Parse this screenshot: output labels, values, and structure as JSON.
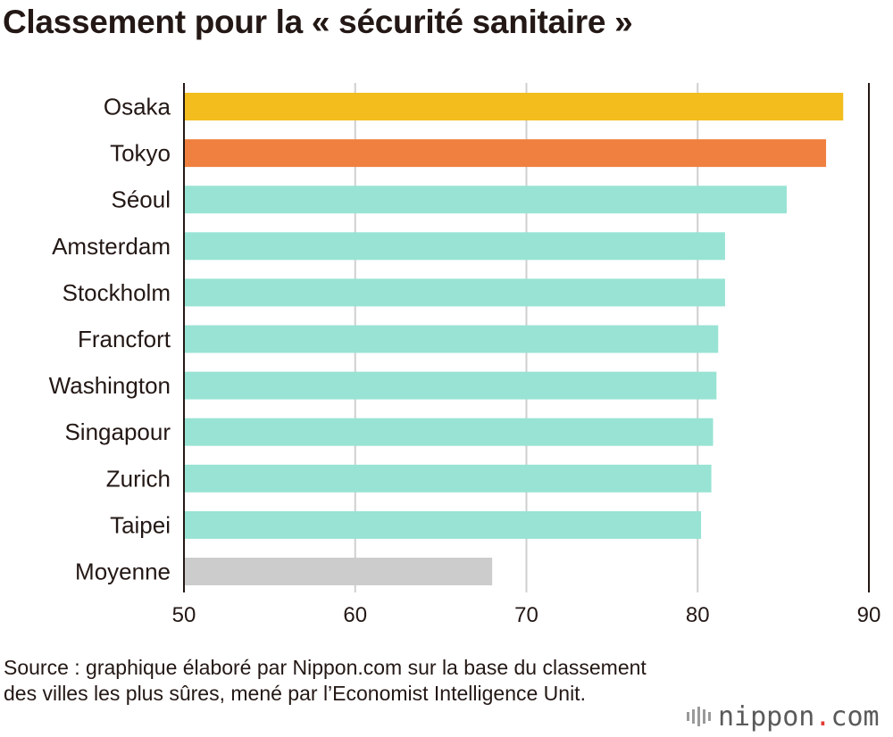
{
  "title": "Classement pour la « sécurité sanitaire »",
  "chart_data": {
    "type": "bar",
    "orientation": "horizontal",
    "title": "Classement pour la « sécurité sanitaire »",
    "categories": [
      "Osaka",
      "Tokyo",
      "Séoul",
      "Amsterdam",
      "Stockholm",
      "Francfort",
      "Washington",
      "Singapour",
      "Zurich",
      "Taipei",
      "Moyenne"
    ],
    "values": [
      88.5,
      87.5,
      85.2,
      81.6,
      81.6,
      81.2,
      81.1,
      80.9,
      80.8,
      80.2,
      68.0
    ],
    "colors": [
      "#f2bd1d",
      "#f08040",
      "#98e3d4",
      "#98e3d4",
      "#98e3d4",
      "#98e3d4",
      "#98e3d4",
      "#98e3d4",
      "#98e3d4",
      "#98e3d4",
      "#cccccc"
    ],
    "xlim": [
      50,
      90
    ],
    "xticks": [
      "50",
      "60",
      "70",
      "80",
      "90"
    ],
    "xlabel": "",
    "ylabel": "",
    "grid": true
  },
  "source": "Source : graphique élaboré par Nippon.com sur la base du classement des villes les plus sûres, mené par l’Economist Intelligence Unit.",
  "logo": {
    "name": "nippon",
    "dot": ".",
    "suffix": "com"
  }
}
